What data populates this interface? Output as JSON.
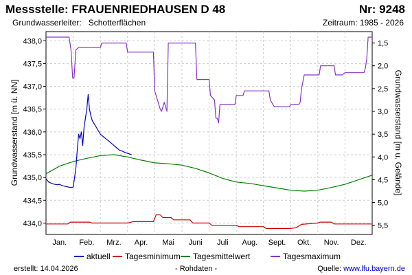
{
  "header": {
    "title": "Messstelle: FRAUENRIEDHAUSEN D 48",
    "nr": "Nr: 9248",
    "aquifer_label": "Grundwasserleiter:",
    "aquifer_value": "Schotterflächen",
    "period": "Zeitraum: 1985 - 2026"
  },
  "footer": {
    "created": "erstellt:  14.04.2026",
    "rawdata": "- Rohdaten -",
    "source_label": "Quelle:",
    "source_url": "www.lfu.bayern.de"
  },
  "chart_data": {
    "type": "line",
    "ylabel_left": "Grundwasserstand [m ü. NN]",
    "ylabel_right": "Grundwasserstand [m u. Gelände]",
    "xlim": [
      0,
      12
    ],
    "ylim_left": [
      433.75,
      438.2
    ],
    "ylim_right_reversed": [
      1.25,
      5.7
    ],
    "grid": true,
    "legend_position": "bottom",
    "months": [
      "Jan.",
      "Feb.",
      "Mrz.",
      "Apr.",
      "Mai",
      "Juni",
      "Juli",
      "Aug.",
      "Sept.",
      "Okt.",
      "Nov.",
      "Dez."
    ],
    "yticks_left": [
      "438,0",
      "437,5",
      "437,0",
      "436,5",
      "436,0",
      "435,5",
      "435,0",
      "434,5",
      "434,0"
    ],
    "yticks_left_values": [
      438.0,
      437.5,
      437.0,
      436.5,
      436.0,
      435.5,
      435.0,
      434.5,
      434.0
    ],
    "yticks_right": [
      "1,5",
      "2,0",
      "2,5",
      "3,0",
      "3,5",
      "4,0",
      "4,5",
      "5,0",
      "5,5"
    ],
    "yticks_right_values": [
      1.5,
      2.0,
      2.5,
      3.0,
      3.5,
      4.0,
      4.5,
      5.0,
      5.5
    ],
    "series": [
      {
        "name": "aktuell",
        "color": "#0000cc",
        "x": [
          0.0,
          0.1,
          0.25,
          0.4,
          0.5,
          0.6,
          0.75,
          0.9,
          1.0,
          1.1,
          1.15,
          1.2,
          1.25,
          1.3,
          1.35,
          1.4,
          1.45,
          1.5,
          1.55,
          1.6,
          1.65,
          1.7,
          1.8,
          1.9,
          2.0,
          2.1,
          2.2,
          2.35,
          2.5,
          2.6,
          2.7,
          2.8,
          2.9,
          3.0,
          3.1,
          3.15
        ],
        "y": [
          434.97,
          434.9,
          434.86,
          434.84,
          434.85,
          434.82,
          434.8,
          434.78,
          434.79,
          435.2,
          435.6,
          435.95,
          435.85,
          436.0,
          435.7,
          436.1,
          436.3,
          436.5,
          436.82,
          436.5,
          436.35,
          436.25,
          436.15,
          436.05,
          435.95,
          435.9,
          435.85,
          435.78,
          435.7,
          435.65,
          435.6,
          435.58,
          435.55,
          435.53,
          435.51,
          435.5
        ]
      },
      {
        "name": "Tagesminimum",
        "color": "#cc0000",
        "x": [
          0.0,
          0.8,
          0.9,
          1.6,
          1.7,
          3.0,
          3.2,
          3.95,
          4.05,
          4.2,
          4.3,
          4.6,
          4.7,
          5.3,
          5.4,
          6.0,
          6.1,
          7.0,
          7.1,
          8.0,
          8.1,
          9.0,
          9.2,
          9.4,
          10.0,
          10.1,
          10.5,
          10.6,
          12.0
        ],
        "y": [
          433.98,
          433.98,
          434.02,
          434.02,
          434.0,
          434.0,
          434.03,
          434.03,
          434.18,
          434.18,
          434.12,
          434.12,
          434.07,
          434.07,
          434.0,
          434.0,
          433.95,
          433.95,
          433.92,
          433.92,
          433.88,
          433.88,
          433.9,
          433.97,
          434.0,
          434.02,
          434.02,
          433.98,
          433.98
        ]
      },
      {
        "name": "Tagesmittelwert",
        "color": "#008000",
        "x": [
          0.0,
          0.5,
          1.0,
          1.5,
          2.0,
          2.5,
          3.0,
          3.5,
          4.0,
          4.5,
          5.0,
          5.5,
          6.0,
          6.5,
          7.0,
          7.5,
          8.0,
          8.5,
          9.0,
          9.5,
          10.0,
          10.5,
          11.0,
          11.5,
          12.0
        ],
        "y": [
          435.08,
          435.25,
          435.35,
          435.42,
          435.48,
          435.5,
          435.45,
          435.38,
          435.32,
          435.3,
          435.27,
          435.2,
          435.1,
          434.98,
          434.9,
          434.87,
          434.82,
          434.77,
          434.72,
          434.7,
          434.72,
          434.78,
          434.85,
          434.95,
          435.05
        ]
      },
      {
        "name": "Tagesmaximum",
        "color": "#8833cc",
        "x": [
          0.0,
          0.85,
          0.92,
          0.98,
          1.03,
          1.1,
          1.2,
          2.0,
          2.05,
          2.95,
          3.0,
          3.95,
          4.0,
          4.2,
          4.25,
          4.35,
          4.45,
          4.5,
          5.5,
          5.55,
          6.0,
          6.05,
          6.2,
          6.25,
          6.3,
          6.35,
          6.4,
          6.95,
          7.0,
          7.25,
          7.3,
          8.2,
          8.25,
          8.35,
          8.4,
          8.95,
          9.0,
          9.3,
          9.35,
          9.4,
          9.5,
          10.05,
          10.1,
          10.6,
          10.65,
          10.9,
          11.0,
          11.7,
          11.75,
          11.8,
          11.85,
          12.0
        ],
        "y": [
          438.08,
          438.08,
          437.8,
          437.18,
          437.18,
          437.8,
          437.85,
          437.85,
          437.95,
          437.95,
          437.75,
          437.75,
          436.9,
          436.5,
          436.45,
          436.65,
          436.45,
          437.95,
          437.95,
          437.15,
          437.15,
          436.8,
          436.7,
          436.3,
          436.3,
          436.2,
          436.6,
          436.6,
          436.8,
          436.8,
          436.9,
          436.9,
          436.7,
          436.6,
          436.55,
          436.55,
          436.6,
          436.6,
          436.65,
          436.95,
          437.25,
          437.25,
          437.45,
          437.45,
          437.25,
          437.25,
          437.3,
          437.3,
          437.4,
          437.6,
          438.08,
          438.08
        ]
      }
    ]
  }
}
